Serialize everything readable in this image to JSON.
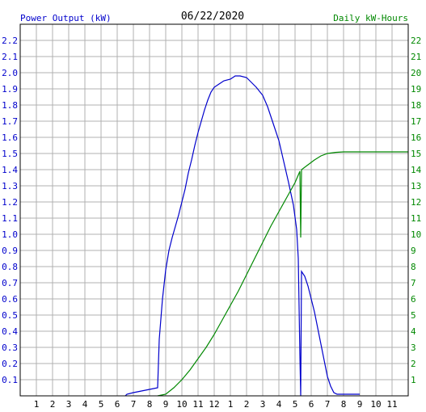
{
  "chart_data": {
    "type": "line",
    "title": "06/22/2020",
    "ylabel_left": "Power Output (kW)",
    "ylabel_right": "Daily kW-Hours",
    "left_axis_ticks": [
      "0.1",
      "0.2",
      "0.3",
      "0.4",
      "0.5",
      "0.6",
      "0.7",
      "0.8",
      "0.9",
      "1.0",
      "1.1",
      "1.2",
      "1.3",
      "1.4",
      "1.5",
      "1.6",
      "1.7",
      "1.8",
      "1.9",
      "2.0",
      "2.1",
      "2.2"
    ],
    "right_axis_ticks": [
      "1",
      "2",
      "3",
      "4",
      "5",
      "6",
      "7",
      "8",
      "9",
      "10",
      "11",
      "12",
      "13",
      "14",
      "15",
      "16",
      "17",
      "18",
      "19",
      "20",
      "21",
      "22"
    ],
    "x_tick_labels": [
      "1",
      "2",
      "3",
      "4",
      "5",
      "6",
      "7",
      "8",
      "9",
      "10",
      "11",
      "12",
      "1",
      "2",
      "3",
      "4",
      "5",
      "6",
      "7",
      "8",
      "9",
      "10",
      "11"
    ],
    "xlim": [
      0,
      24
    ],
    "ylim_left": [
      0,
      2.3
    ],
    "ylim_right": [
      0,
      23
    ],
    "grid": true,
    "colors": {
      "power": "#0000cc",
      "energy": "#008800",
      "left_axis_text": "#0000cc",
      "right_axis_text": "#008800",
      "grid": "#b0b0b0"
    },
    "series": [
      {
        "key": "power",
        "axis": "left",
        "points": [
          [
            6.5,
            0
          ],
          [
            6.6,
            0.01
          ],
          [
            7.0,
            0.02
          ],
          [
            7.5,
            0.03
          ],
          [
            8.0,
            0.04
          ],
          [
            8.5,
            0.05
          ],
          [
            8.6,
            0.35
          ],
          [
            8.8,
            0.6
          ],
          [
            9.0,
            0.78
          ],
          [
            9.2,
            0.9
          ],
          [
            9.4,
            0.98
          ],
          [
            9.6,
            1.05
          ],
          [
            9.8,
            1.12
          ],
          [
            10.0,
            1.2
          ],
          [
            10.2,
            1.28
          ],
          [
            10.4,
            1.38
          ],
          [
            10.6,
            1.46
          ],
          [
            10.8,
            1.55
          ],
          [
            11.0,
            1.63
          ],
          [
            11.2,
            1.7
          ],
          [
            11.4,
            1.77
          ],
          [
            11.6,
            1.83
          ],
          [
            11.8,
            1.88
          ],
          [
            12.0,
            1.91
          ],
          [
            12.3,
            1.93
          ],
          [
            12.6,
            1.95
          ],
          [
            13.0,
            1.96
          ],
          [
            13.3,
            1.98
          ],
          [
            13.6,
            1.98
          ],
          [
            14.0,
            1.97
          ],
          [
            14.3,
            1.94
          ],
          [
            14.6,
            1.91
          ],
          [
            15.0,
            1.86
          ],
          [
            15.3,
            1.79
          ],
          [
            15.6,
            1.7
          ],
          [
            16.0,
            1.58
          ],
          [
            16.3,
            1.45
          ],
          [
            16.6,
            1.32
          ],
          [
            16.9,
            1.18
          ],
          [
            17.1,
            1.03
          ],
          [
            17.2,
            0.85
          ],
          [
            17.25,
            0.55
          ],
          [
            17.3,
            0.25
          ],
          [
            17.35,
            0
          ],
          [
            17.4,
            0.77
          ],
          [
            17.6,
            0.74
          ],
          [
            17.8,
            0.68
          ],
          [
            18.0,
            0.6
          ],
          [
            18.2,
            0.52
          ],
          [
            18.4,
            0.42
          ],
          [
            18.6,
            0.32
          ],
          [
            18.8,
            0.22
          ],
          [
            19.0,
            0.12
          ],
          [
            19.2,
            0.06
          ],
          [
            19.4,
            0.02
          ],
          [
            19.6,
            0.01
          ],
          [
            21.0,
            0.01
          ]
        ]
      },
      {
        "key": "energy",
        "axis": "right",
        "points": [
          [
            8.5,
            0
          ],
          [
            9.0,
            0.1
          ],
          [
            9.5,
            0.5
          ],
          [
            10.0,
            1.0
          ],
          [
            10.5,
            1.6
          ],
          [
            11.0,
            2.3
          ],
          [
            11.5,
            3.0
          ],
          [
            12.0,
            3.8
          ],
          [
            12.5,
            4.7
          ],
          [
            13.0,
            5.6
          ],
          [
            13.5,
            6.5
          ],
          [
            14.0,
            7.5
          ],
          [
            14.5,
            8.5
          ],
          [
            15.0,
            9.5
          ],
          [
            15.5,
            10.5
          ],
          [
            16.0,
            11.4
          ],
          [
            16.5,
            12.3
          ],
          [
            17.0,
            13.2
          ],
          [
            17.3,
            13.9
          ],
          [
            17.35,
            9.8
          ],
          [
            17.4,
            14.0
          ],
          [
            17.8,
            14.3
          ],
          [
            18.2,
            14.6
          ],
          [
            18.6,
            14.85
          ],
          [
            19.0,
            15.0
          ],
          [
            19.5,
            15.07
          ],
          [
            20.0,
            15.1
          ],
          [
            24.0,
            15.1
          ]
        ]
      }
    ]
  }
}
